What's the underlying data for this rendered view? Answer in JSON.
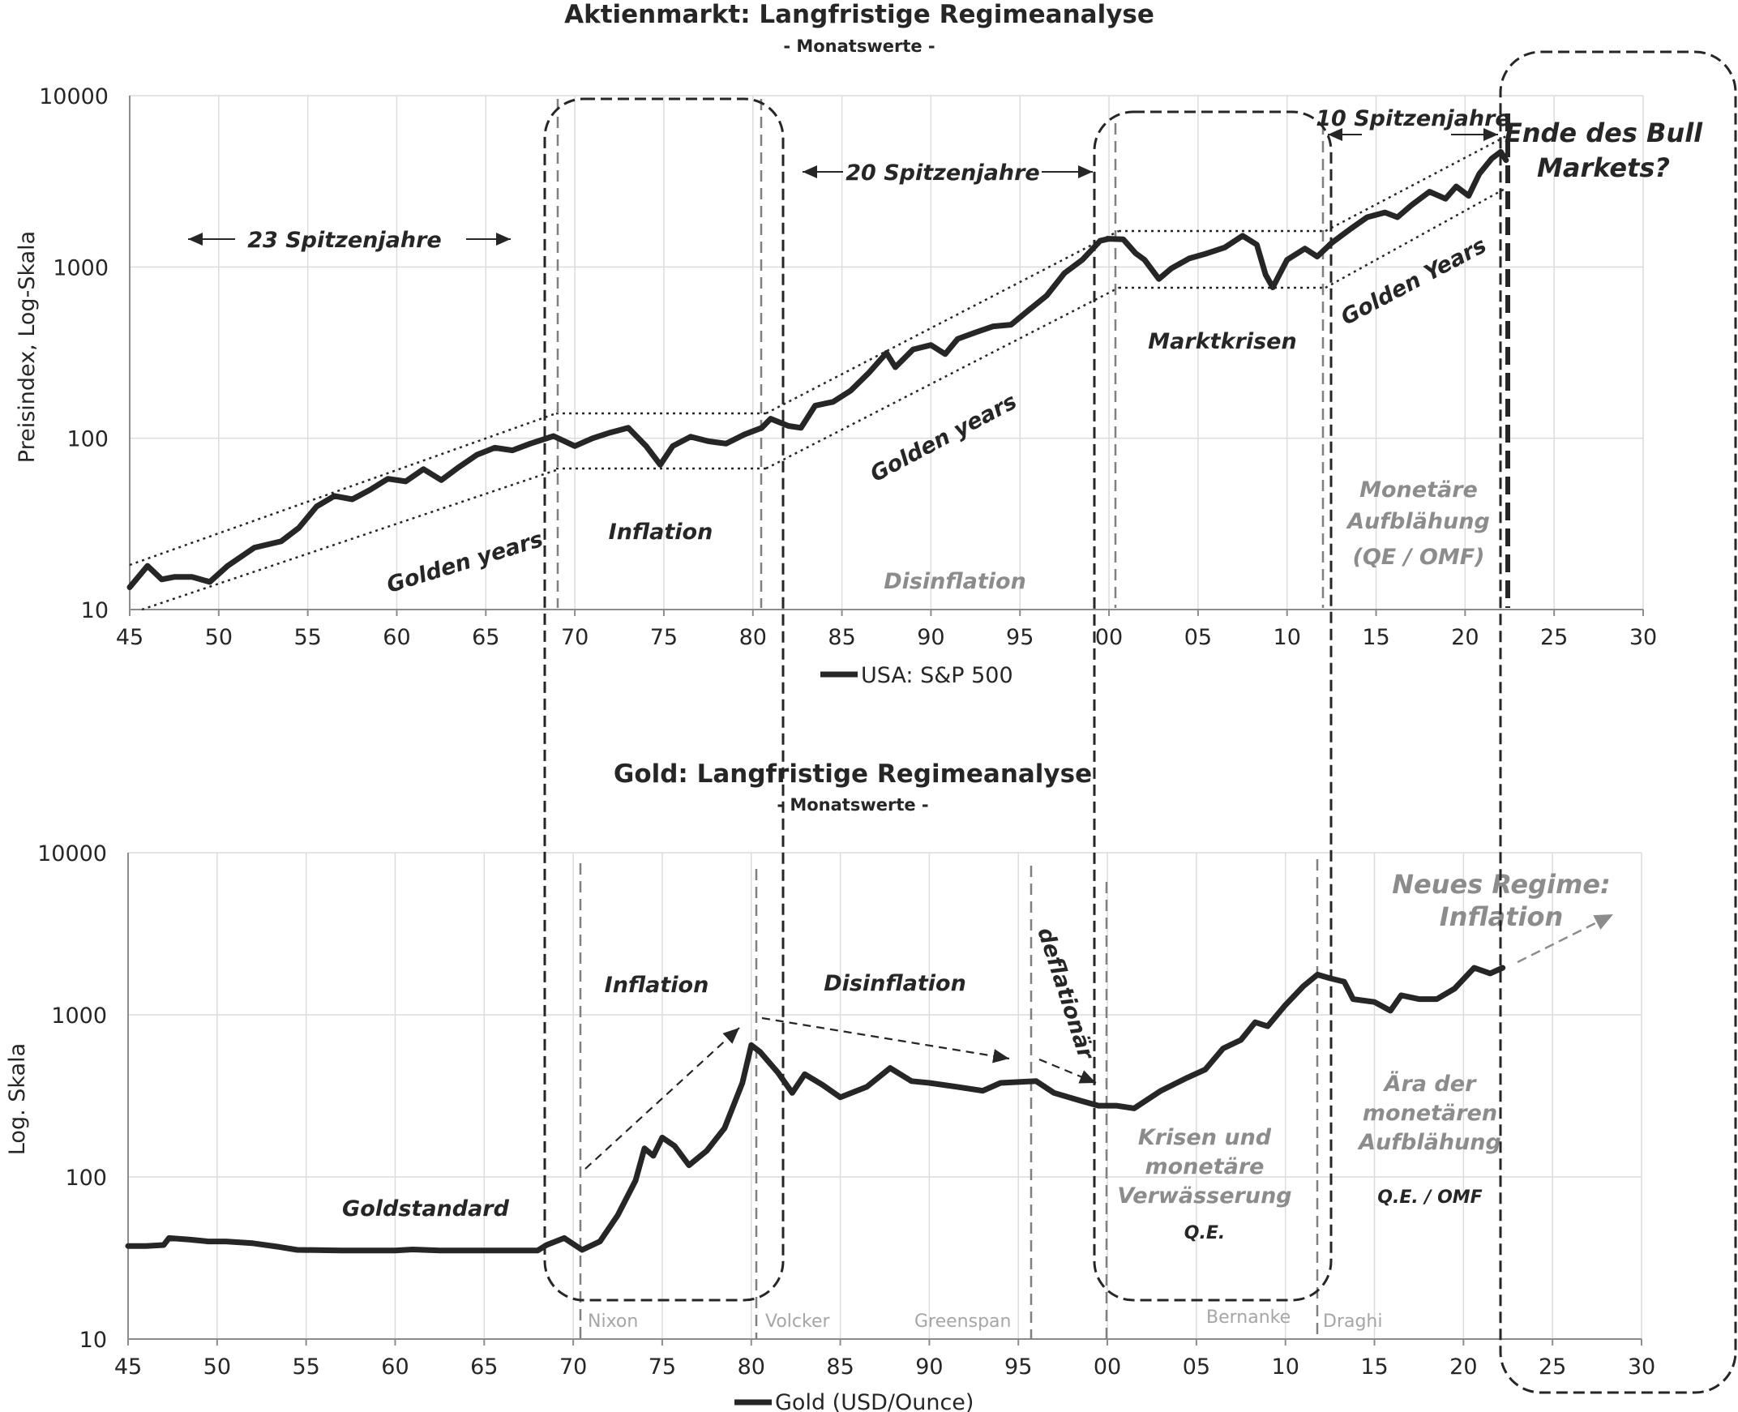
{
  "chart_data": [
    {
      "type": "line",
      "title": "Aktienmarkt: Langfristige Regimeanalyse",
      "subtitle": "- Monatswerte -",
      "ylabel": "Preisindex, Log-Skala",
      "yscale": "log",
      "ylim": [
        10,
        10000
      ],
      "yticks": [
        "10",
        "100",
        "1000",
        "10000"
      ],
      "xlim": [
        1945,
        2030
      ],
      "xticks": [
        "45",
        "50",
        "55",
        "60",
        "65",
        "70",
        "75",
        "80",
        "85",
        "90",
        "95",
        "00",
        "05",
        "10",
        "15",
        "20",
        "25",
        "30"
      ],
      "grid": true,
      "legend_position": "bottom",
      "series": [
        {
          "name": "USA: S&P 500",
          "points": [
            [
              1945.0,
              13.5
            ],
            [
              1946.0,
              18
            ],
            [
              1946.8,
              15
            ],
            [
              1947.5,
              15.5
            ],
            [
              1948.5,
              15.5
            ],
            [
              1949.5,
              14.5
            ],
            [
              1950.5,
              18
            ],
            [
              1952.0,
              23
            ],
            [
              1953.5,
              25
            ],
            [
              1954.5,
              30
            ],
            [
              1955.5,
              40
            ],
            [
              1956.5,
              46
            ],
            [
              1957.5,
              44
            ],
            [
              1958.5,
              50
            ],
            [
              1959.5,
              58
            ],
            [
              1960.5,
              56
            ],
            [
              1961.5,
              66
            ],
            [
              1962.5,
              57
            ],
            [
              1963.5,
              68
            ],
            [
              1964.5,
              80
            ],
            [
              1965.5,
              88
            ],
            [
              1966.5,
              85
            ],
            [
              1967.5,
              93
            ],
            [
              1968.8,
              103
            ],
            [
              1970.0,
              90
            ],
            [
              1971.0,
              100
            ],
            [
              1972.0,
              108
            ],
            [
              1973.0,
              115
            ],
            [
              1974.0,
              90
            ],
            [
              1974.8,
              70
            ],
            [
              1975.5,
              90
            ],
            [
              1976.5,
              102
            ],
            [
              1977.5,
              96
            ],
            [
              1978.5,
              93
            ],
            [
              1979.5,
              105
            ],
            [
              1980.5,
              115
            ],
            [
              1981.0,
              130
            ],
            [
              1982.0,
              118
            ],
            [
              1982.7,
              115
            ],
            [
              1983.5,
              155
            ],
            [
              1984.5,
              163
            ],
            [
              1985.5,
              190
            ],
            [
              1986.5,
              240
            ],
            [
              1987.5,
              315
            ],
            [
              1988.0,
              260
            ],
            [
              1989.0,
              330
            ],
            [
              1990.0,
              350
            ],
            [
              1990.8,
              310
            ],
            [
              1991.5,
              380
            ],
            [
              1992.5,
              415
            ],
            [
              1993.5,
              450
            ],
            [
              1994.5,
              460
            ],
            [
              1995.5,
              560
            ],
            [
              1996.5,
              680
            ],
            [
              1997.5,
              920
            ],
            [
              1998.5,
              1100
            ],
            [
              1999.5,
              1420
            ],
            [
              2000.0,
              1460
            ],
            [
              2000.8,
              1450
            ],
            [
              2001.5,
              1200
            ],
            [
              2002.0,
              1100
            ],
            [
              2002.8,
              850
            ],
            [
              2003.5,
              980
            ],
            [
              2004.5,
              1120
            ],
            [
              2005.5,
              1200
            ],
            [
              2006.5,
              1300
            ],
            [
              2007.5,
              1520
            ],
            [
              2008.3,
              1350
            ],
            [
              2008.8,
              900
            ],
            [
              2009.2,
              760
            ],
            [
              2010.0,
              1100
            ],
            [
              2011.0,
              1280
            ],
            [
              2011.7,
              1150
            ],
            [
              2012.5,
              1380
            ],
            [
              2013.5,
              1650
            ],
            [
              2014.5,
              1950
            ],
            [
              2015.5,
              2080
            ],
            [
              2016.2,
              1950
            ],
            [
              2017.0,
              2300
            ],
            [
              2018.0,
              2750
            ],
            [
              2018.9,
              2500
            ],
            [
              2019.5,
              2950
            ],
            [
              2020.2,
              2600
            ],
            [
              2020.8,
              3500
            ],
            [
              2021.5,
              4300
            ],
            [
              2022.0,
              4700
            ],
            [
              2022.3,
              4200
            ]
          ]
        }
      ],
      "annotations": [
        "23 Spitzenjahre",
        "20 Spitzenjahre",
        "10 Spitzenjahre",
        "Ende des Bull",
        "Markets?",
        "Golden years",
        "Golden years",
        "Golden Years",
        "Inflation",
        "Disinflation",
        "Marktkrisen",
        "Monetäre",
        "Aufblähung",
        "(QE / OMF)"
      ]
    },
    {
      "type": "line",
      "title": "Gold: Langfristige Regimeanalyse",
      "subtitle": "- Monatswerte -",
      "ylabel": "Log. Skala",
      "yscale": "log",
      "ylim": [
        10,
        10000
      ],
      "yticks": [
        "10",
        "100",
        "1000",
        "10000"
      ],
      "xlim": [
        1945,
        2030
      ],
      "xticks": [
        "45",
        "50",
        "55",
        "60",
        "65",
        "70",
        "75",
        "80",
        "85",
        "90",
        "95",
        "00",
        "05",
        "10",
        "15",
        "20",
        "25",
        "30"
      ],
      "grid": true,
      "legend_position": "bottom",
      "series": [
        {
          "name": "Gold (USD/Ounce)",
          "points": [
            [
              1945.0,
              37.5
            ],
            [
              1946.0,
              37.5
            ],
            [
              1947.0,
              38
            ],
            [
              1947.3,
              42
            ],
            [
              1948.5,
              41
            ],
            [
              1949.5,
              40
            ],
            [
              1950.5,
              40
            ],
            [
              1952.0,
              39
            ],
            [
              1953.5,
              37
            ],
            [
              1954.5,
              35.5
            ],
            [
              1957.0,
              35.2
            ],
            [
              1960.0,
              35.2
            ],
            [
              1961.0,
              35.7
            ],
            [
              1962.5,
              35.2
            ],
            [
              1965.0,
              35.2
            ],
            [
              1968.0,
              35.2
            ],
            [
              1968.5,
              38
            ],
            [
              1969.5,
              42
            ],
            [
              1970.5,
              35.5
            ],
            [
              1971.5,
              40
            ],
            [
              1972.5,
              58
            ],
            [
              1973.5,
              95
            ],
            [
              1974.0,
              150
            ],
            [
              1974.5,
              135
            ],
            [
              1975.0,
              175
            ],
            [
              1975.7,
              155
            ],
            [
              1976.5,
              118
            ],
            [
              1977.5,
              145
            ],
            [
              1978.5,
              200
            ],
            [
              1979.5,
              380
            ],
            [
              1980.0,
              650
            ],
            [
              1980.5,
              590
            ],
            [
              1981.5,
              440
            ],
            [
              1982.3,
              330
            ],
            [
              1983.0,
              430
            ],
            [
              1984.0,
              370
            ],
            [
              1985.0,
              310
            ],
            [
              1986.5,
              360
            ],
            [
              1987.8,
              470
            ],
            [
              1989.0,
              390
            ],
            [
              1990.0,
              380
            ],
            [
              1991.5,
              360
            ],
            [
              1993.0,
              340
            ],
            [
              1994.0,
              380
            ],
            [
              1996.0,
              390
            ],
            [
              1997.0,
              330
            ],
            [
              1998.5,
              295
            ],
            [
              1999.5,
              275
            ],
            [
              2000.5,
              275
            ],
            [
              2001.5,
              265
            ],
            [
              2003.0,
              340
            ],
            [
              2004.5,
              410
            ],
            [
              2005.5,
              460
            ],
            [
              2006.5,
              620
            ],
            [
              2007.5,
              700
            ],
            [
              2008.3,
              900
            ],
            [
              2009.0,
              850
            ],
            [
              2010.0,
              1150
            ],
            [
              2011.0,
              1500
            ],
            [
              2011.8,
              1770
            ],
            [
              2012.5,
              1680
            ],
            [
              2013.3,
              1600
            ],
            [
              2013.8,
              1250
            ],
            [
              2015.0,
              1200
            ],
            [
              2015.9,
              1060
            ],
            [
              2016.5,
              1320
            ],
            [
              2017.5,
              1250
            ],
            [
              2018.5,
              1250
            ],
            [
              2019.5,
              1450
            ],
            [
              2020.6,
              1950
            ],
            [
              2021.5,
              1800
            ],
            [
              2022.2,
              1950
            ]
          ]
        }
      ],
      "annotations": [
        "Goldstandard",
        "Inflation",
        "Disinflation",
        "deflationär",
        "Neues Regime:",
        "Inflation",
        "Krisen und",
        "monetäre",
        "Verwässerung",
        "Q.E.",
        "Ära der",
        "monetären",
        "Aufblähung",
        "Q.E. / OMF",
        "Nixon",
        "Volcker",
        "Greenspan",
        "Bernanke",
        "Draghi"
      ]
    }
  ]
}
